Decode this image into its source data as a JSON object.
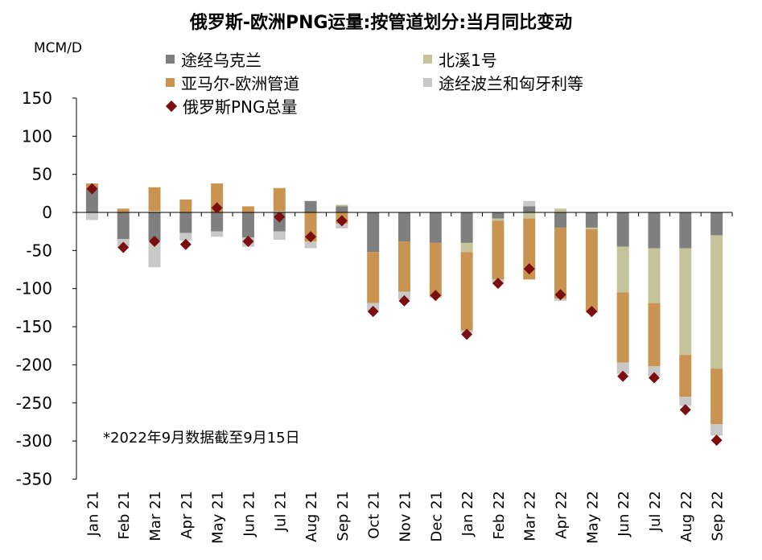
{
  "chart_data": {
    "type": "bar",
    "title": "俄罗斯-欧洲PNG运量:按管道划分:当月同比变动",
    "unit": "MCM/D",
    "note": "*2022年9月数据截至9月15日",
    "ylim": [
      -350,
      150
    ],
    "yticks": [
      150,
      100,
      50,
      0,
      -50,
      -100,
      -150,
      -200,
      -250,
      -300,
      -350
    ],
    "categories": [
      "Jan 21",
      "Feb 21",
      "Mar 21",
      "Apr 21",
      "May 21",
      "Jun 21",
      "Jul 21",
      "Aug 21",
      "Sep 21",
      "Oct 21",
      "Nov 21",
      "Dec 21",
      "Jan 22",
      "Feb 22",
      "Mar 22",
      "Apr 22",
      "May 22",
      "Jun 22",
      "Jul 22",
      "Aug 22",
      "Sep 22"
    ],
    "legend_placement": "top",
    "grid": false,
    "series": [
      {
        "name": "途经乌克兰",
        "kind": "bar",
        "color": "#7f7f7f",
        "values": [
          30,
          -35,
          -37,
          -27,
          -25,
          -33,
          -25,
          15,
          8,
          -52,
          -38,
          -40,
          -40,
          -8,
          8,
          -20,
          -20,
          -45,
          -47,
          -47,
          -30
        ]
      },
      {
        "name": "北溪1号",
        "kind": "bar",
        "color": "#c4c39a",
        "values": [
          0,
          0,
          2,
          0,
          0,
          0,
          2,
          0,
          2,
          0,
          0,
          0,
          -12,
          -3,
          -8,
          5,
          -2,
          -60,
          -72,
          -140,
          -175
        ]
      },
      {
        "name": "亚马尔-欧洲管道",
        "kind": "bar",
        "color": "#c99452",
        "values": [
          8,
          5,
          31,
          17,
          38,
          8,
          30,
          -38,
          -15,
          -67,
          -66,
          -70,
          -103,
          -77,
          -80,
          -93,
          -108,
          -92,
          -83,
          -55,
          -73
        ]
      },
      {
        "name": "途经波兰和匈牙利等",
        "kind": "bar",
        "color": "#c8c8c8",
        "values": [
          -10,
          -10,
          -35,
          -10,
          -7,
          -12,
          -11,
          -9,
          -6,
          -10,
          -10,
          -2,
          -3,
          -5,
          7,
          -3,
          -2,
          -15,
          -13,
          -12,
          -15
        ]
      },
      {
        "name": "俄罗斯PNG总量",
        "kind": "marker",
        "color": "#7b0e0e",
        "values": [
          31,
          -46,
          -38,
          -42,
          6,
          -38,
          -6,
          -32,
          -11,
          -130,
          -116,
          -109,
          -160,
          -93,
          -74,
          -108,
          -130,
          -215,
          -217,
          -259,
          -299
        ]
      }
    ]
  }
}
